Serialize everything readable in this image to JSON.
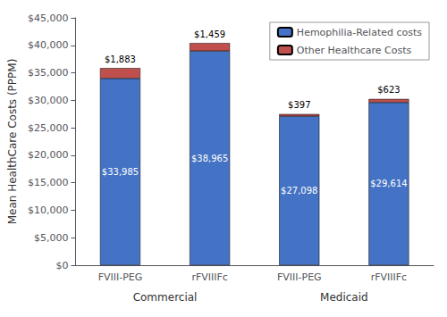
{
  "chart_data": {
    "type": "bar",
    "stacked": true,
    "categories": [
      "FVIII-PEG",
      "rFVIIIFc",
      "FVIII-PEG",
      "rFVIIIFc"
    ],
    "groups": [
      "Commercial",
      "Medicaid"
    ],
    "ylabel": "Mean HealthCare Costs (PPPM)",
    "series": [
      {
        "name": "Hemophilia-Related costs",
        "color": "#4472C4",
        "values": [
          33985,
          38965,
          27098,
          29614
        ],
        "value_labels": [
          "$33,985",
          "$38,965",
          "$27,098",
          "$29,614"
        ]
      },
      {
        "name": "Other Healthcare Costs",
        "color": "#C0504D",
        "values": [
          1883,
          1459,
          397,
          623
        ],
        "value_labels": [
          "$1,883",
          "$1,459",
          "$397",
          "$623"
        ]
      }
    ],
    "ylim": [
      0,
      45000
    ],
    "yticks": [
      {
        "value": 0,
        "label": "$0"
      },
      {
        "value": 5000,
        "label": "$5,000"
      },
      {
        "value": 10000,
        "label": "$10,000"
      },
      {
        "value": 15000,
        "label": "$15,000"
      },
      {
        "value": 20000,
        "label": "$20,000"
      },
      {
        "value": 25000,
        "label": "$25,000"
      },
      {
        "value": 30000,
        "label": "$30,000"
      },
      {
        "value": 35000,
        "label": "$35,000"
      },
      {
        "value": 40000,
        "label": "$40,000"
      },
      {
        "value": 45000,
        "label": "$45,000"
      }
    ],
    "data_labels": true,
    "legend": "upper right",
    "grid": false
  }
}
